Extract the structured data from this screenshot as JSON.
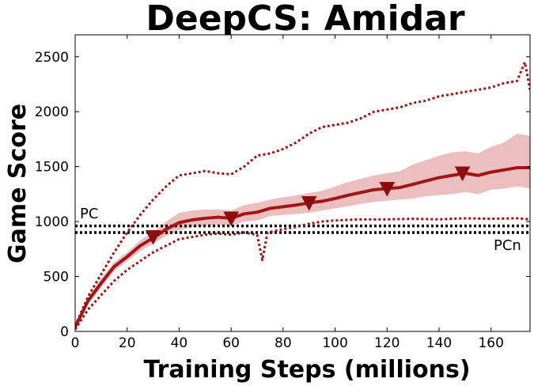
{
  "chart_data": {
    "type": "line",
    "title": "DeepCS: Amidar",
    "xlabel": "Training Steps (millions)",
    "ylabel": "Game Score",
    "xlim": [
      0,
      175
    ],
    "ylim": [
      0,
      2700
    ],
    "xticks": [
      0,
      20,
      40,
      60,
      80,
      100,
      120,
      140,
      160
    ],
    "yticks": [
      0,
      500,
      1000,
      1500,
      2000,
      2500
    ],
    "grid": false,
    "legend": "none",
    "colors": {
      "series": "#a31515",
      "band": "#e8b4b4",
      "reference": "#000000"
    },
    "series": [
      {
        "role": "mean",
        "style": "solid",
        "x": [
          0,
          5,
          10,
          15,
          20,
          25,
          30,
          35,
          40,
          45,
          50,
          55,
          60,
          65,
          70,
          75,
          80,
          85,
          90,
          95,
          100,
          105,
          110,
          115,
          120,
          125,
          130,
          135,
          140,
          145,
          150,
          155,
          160,
          165,
          170,
          175
        ],
        "y": [
          40,
          280,
          440,
          590,
          680,
          780,
          850,
          930,
          990,
          1015,
          1030,
          1040,
          1030,
          1070,
          1085,
          1120,
          1135,
          1150,
          1170,
          1185,
          1210,
          1240,
          1265,
          1290,
          1300,
          1310,
          1340,
          1370,
          1400,
          1420,
          1440,
          1420,
          1450,
          1470,
          1490,
          1490
        ]
      },
      {
        "role": "std_upper",
        "style": "band",
        "x": [
          0,
          5,
          10,
          15,
          20,
          25,
          30,
          35,
          40,
          45,
          50,
          55,
          60,
          65,
          70,
          75,
          80,
          85,
          90,
          95,
          100,
          105,
          110,
          115,
          120,
          125,
          130,
          135,
          140,
          145,
          150,
          155,
          160,
          165,
          170,
          175
        ],
        "y": [
          50,
          310,
          480,
          630,
          720,
          830,
          900,
          1000,
          1080,
          1100,
          1110,
          1110,
          1100,
          1150,
          1170,
          1200,
          1220,
          1240,
          1260,
          1280,
          1320,
          1360,
          1390,
          1420,
          1440,
          1460,
          1520,
          1560,
          1600,
          1630,
          1640,
          1620,
          1680,
          1720,
          1800,
          1780
        ]
      },
      {
        "role": "std_lower",
        "style": "band",
        "x": [
          0,
          5,
          10,
          15,
          20,
          25,
          30,
          35,
          40,
          45,
          50,
          55,
          60,
          65,
          70,
          75,
          80,
          85,
          90,
          95,
          100,
          105,
          110,
          115,
          120,
          125,
          130,
          135,
          140,
          145,
          150,
          155,
          160,
          165,
          170,
          175
        ],
        "y": [
          30,
          250,
          400,
          550,
          640,
          730,
          800,
          870,
          920,
          950,
          960,
          970,
          965,
          1000,
          1010,
          1050,
          1060,
          1070,
          1080,
          1100,
          1120,
          1140,
          1160,
          1180,
          1190,
          1200,
          1210,
          1230,
          1240,
          1250,
          1270,
          1250,
          1290,
          1300,
          1320,
          1300
        ]
      },
      {
        "role": "max",
        "style": "dotted",
        "x": [
          0,
          5,
          10,
          15,
          20,
          25,
          30,
          35,
          40,
          45,
          50,
          55,
          60,
          65,
          70,
          75,
          80,
          85,
          90,
          95,
          100,
          105,
          110,
          115,
          120,
          125,
          130,
          135,
          140,
          145,
          150,
          155,
          160,
          165,
          170,
          173,
          175
        ],
        "y": [
          50,
          320,
          520,
          720,
          900,
          1060,
          1200,
          1320,
          1420,
          1440,
          1460,
          1440,
          1430,
          1500,
          1600,
          1620,
          1660,
          1720,
          1800,
          1860,
          1880,
          1900,
          1940,
          2000,
          2020,
          2040,
          2080,
          2100,
          2140,
          2160,
          2180,
          2200,
          2220,
          2260,
          2280,
          2450,
          2200
        ]
      },
      {
        "role": "min",
        "style": "dotted",
        "x": [
          0,
          5,
          10,
          15,
          20,
          25,
          30,
          35,
          40,
          45,
          50,
          55,
          60,
          65,
          70,
          72,
          74,
          80,
          85,
          90,
          95,
          100,
          110,
          120,
          130,
          140,
          150,
          160,
          170,
          175
        ],
        "y": [
          20,
          200,
          330,
          460,
          560,
          640,
          720,
          780,
          840,
          860,
          880,
          890,
          880,
          900,
          880,
          650,
          900,
          930,
          950,
          980,
          1000,
          1010,
          1020,
          1020,
          1025,
          1020,
          1030,
          1025,
          1030,
          1020
        ]
      }
    ],
    "markers": {
      "shape": "triangle-down",
      "x": [
        30,
        60,
        90,
        120,
        149
      ],
      "y": [
        860,
        1030,
        1170,
        1300,
        1440
      ]
    },
    "reference_lines": [
      {
        "label": "PC",
        "y": 960,
        "style": "dotted"
      },
      {
        "label": "PCn",
        "y": 900,
        "style": "dotted"
      }
    ]
  }
}
